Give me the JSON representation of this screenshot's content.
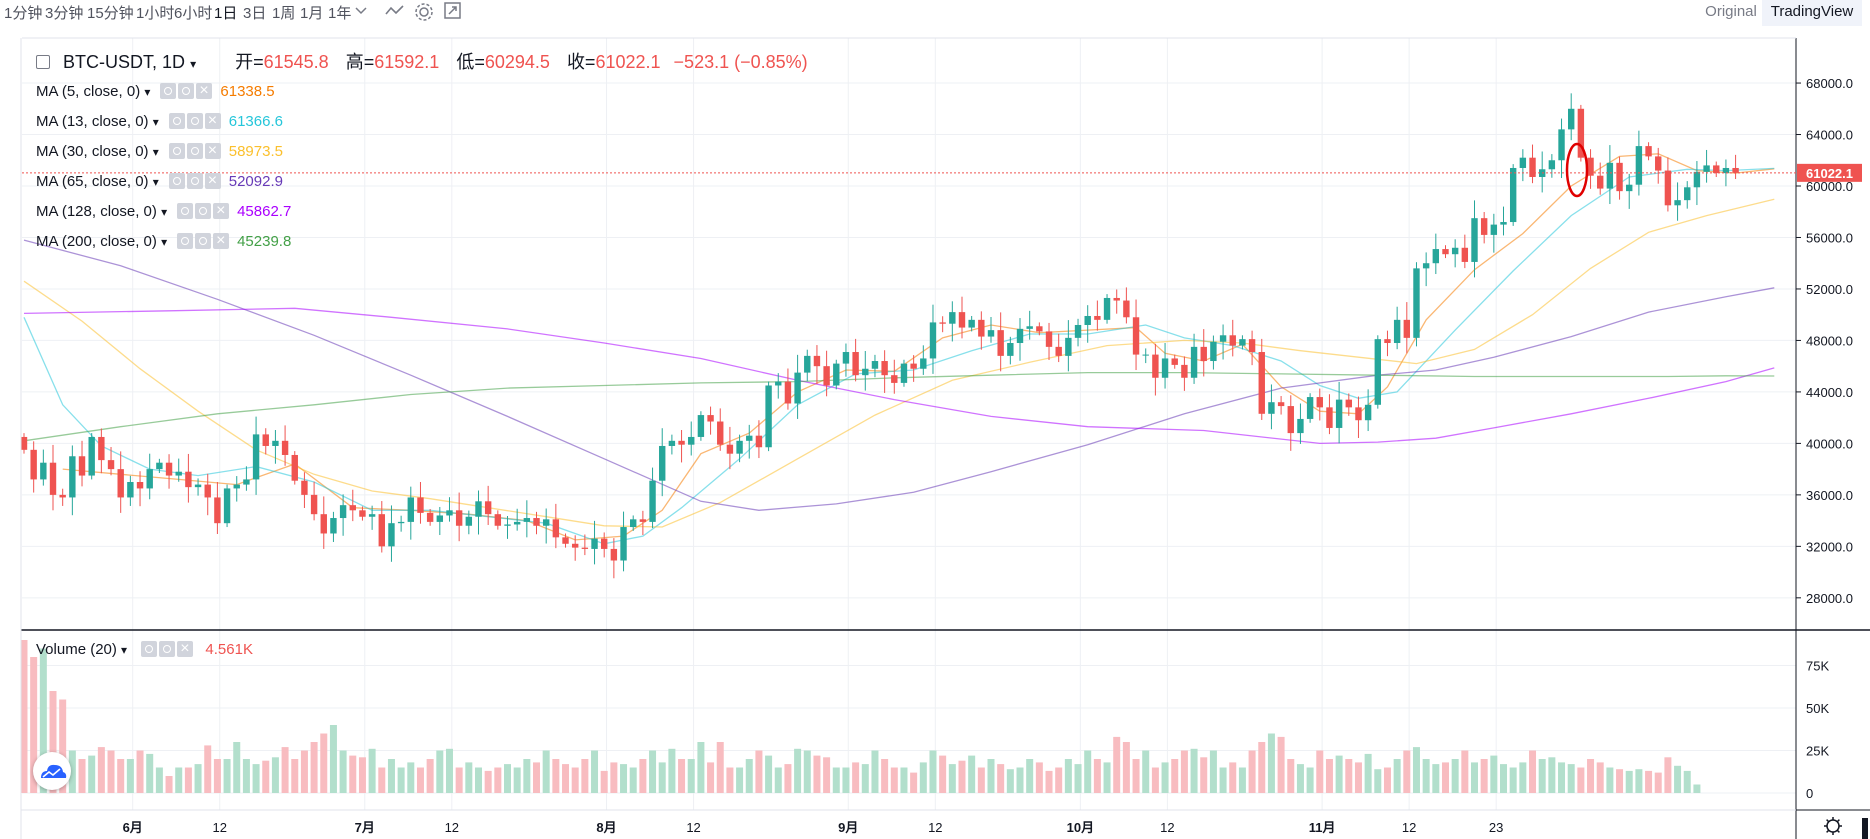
{
  "toolbar": {
    "timeframes": [
      "1分钟",
      "3分钟",
      "15分钟",
      "1小时",
      "6小时",
      "1日",
      "3日",
      "1周",
      "1月",
      "1年"
    ],
    "active_timeframe": "1日",
    "original_label": "Original",
    "tradingview_label": "TradingView"
  },
  "legend": {
    "symbol": "BTC-USDT",
    "interval": "1D",
    "open_label": "开=",
    "open": "61545.8",
    "high_label": "高=",
    "high": "61592.1",
    "low_label": "低=",
    "low": "60294.5",
    "close_label": "收=",
    "close": "61022.1",
    "change": "−523.1 (−0.85%)"
  },
  "indicators": [
    {
      "label": "MA (5, close, 0)",
      "value": "61338.5",
      "color": "#f57c00"
    },
    {
      "label": "MA (13, close, 0)",
      "value": "61366.6",
      "color": "#26c6da"
    },
    {
      "label": "MA (30, close, 0)",
      "value": "58973.5",
      "color": "#fbc02d"
    },
    {
      "label": "MA (65, close, 0)",
      "value": "52092.9",
      "color": "#673ab7"
    },
    {
      "label": "MA (128, close, 0)",
      "value": "45862.7",
      "color": "#aa00ff"
    },
    {
      "label": "MA (200, close, 0)",
      "value": "45239.8",
      "color": "#43a047"
    }
  ],
  "volume_legend": {
    "label": "Volume (20)",
    "value": "4.561K"
  },
  "last_price_label": "61022.1",
  "chart_data": {
    "type": "candlestick",
    "price_axis_ticks": [
      "68000.0",
      "64000.0",
      "60000.0",
      "56000.0",
      "52000.0",
      "48000.0",
      "44000.0",
      "40000.0",
      "36000.0",
      "32000.0",
      "28000.0"
    ],
    "volume_axis_ticks": [
      "75K",
      "50K",
      "25K",
      "0"
    ],
    "time_axis_ticks": [
      "6月",
      "12",
      "7月",
      "12",
      "8月",
      "12",
      "9月",
      "12",
      "10月",
      "12",
      "11月",
      "12",
      "23"
    ],
    "ylim": [
      25500,
      71500
    ],
    "closes": [
      39500,
      37200,
      38500,
      36000,
      35800,
      39000,
      37500,
      40500,
      38700,
      38000,
      35800,
      37000,
      36500,
      38000,
      38500,
      37500,
      37800,
      36600,
      36800,
      35800,
      33800,
      36500,
      36800,
      37200,
      40700,
      39800,
      40200,
      39100,
      37100,
      36000,
      34500,
      33000,
      34200,
      35200,
      34800,
      34300,
      34500,
      32000,
      33800,
      33900,
      35800,
      34600,
      33900,
      34400,
      34800,
      33600,
      34300,
      35500,
      34500,
      33600,
      33700,
      33900,
      34200,
      33600,
      34100,
      32700,
      32200,
      31900,
      31800,
      32600,
      31800,
      30900,
      33500,
      34100,
      33900,
      37100,
      39800,
      40200,
      39900,
      40500,
      42200,
      41700,
      39900,
      39200,
      40200,
      40600,
      39700,
      44500,
      44800,
      43100,
      45500,
      46800,
      46000,
      44500,
      46200,
      47100,
      45300,
      45800,
      46400,
      45300,
      44700,
      46200,
      45800,
      46600,
      49400,
      49300,
      50200,
      49000,
      49600,
      48300,
      48800,
      46800,
      47800,
      48900,
      49100,
      48700,
      47500,
      46800,
      48200,
      49200,
      49900,
      49600,
      51300,
      51100,
      49800,
      46900,
      46900,
      45100,
      46600,
      46100,
      45100,
      47500,
      46400,
      47900,
      48400,
      47600,
      48100,
      47100,
      42300,
      43200,
      42900,
      40800,
      41900,
      43600,
      42800,
      41200,
      43400,
      42800,
      41800,
      43000,
      48100,
      47800,
      49600,
      48200,
      53600,
      54000,
      55100,
      54700,
      55200,
      54100,
      57500,
      56200,
      57000,
      57200,
      61400,
      62200,
      60700,
      61300,
      62000,
      64400,
      66000,
      62200,
      60800,
      59800,
      61800,
      59600,
      60100,
      63100,
      62300,
      61200,
      58500,
      58900,
      59900,
      61100,
      61600,
      61000,
      61400,
      61022
    ],
    "volume": [
      90,
      80,
      85,
      60,
      55,
      25,
      20,
      22,
      27,
      25,
      20,
      20,
      25,
      23,
      15,
      10,
      15,
      15,
      17,
      28,
      20,
      20,
      30,
      20,
      17,
      19,
      21,
      27,
      20,
      25,
      30,
      35,
      40,
      25,
      22,
      21,
      26,
      15,
      20,
      15,
      18,
      15,
      20,
      25,
      26,
      15,
      18,
      15,
      13,
      15,
      17,
      15,
      20,
      18,
      25,
      20,
      17,
      15,
      20,
      25,
      13,
      18,
      17,
      15,
      20,
      25,
      18,
      26,
      20,
      20,
      30,
      18,
      30,
      15,
      15,
      20,
      25,
      22,
      15,
      17,
      26,
      25,
      22,
      21,
      15,
      15,
      18,
      17,
      25,
      20,
      15,
      15,
      12,
      18,
      25,
      22,
      17,
      19,
      22,
      15,
      20,
      17,
      14,
      15,
      20,
      18,
      13,
      15,
      20,
      17,
      25,
      20,
      18,
      33,
      30,
      20,
      25,
      15,
      18,
      20,
      25,
      26,
      21,
      25,
      15,
      18,
      15,
      25,
      30,
      35,
      33,
      20,
      17,
      15,
      25,
      20,
      22,
      20,
      18,
      23,
      14,
      15,
      20,
      25,
      27,
      20,
      17,
      18,
      20,
      25,
      18,
      20,
      22,
      17,
      15,
      18,
      25,
      20,
      21,
      18,
      17,
      15,
      20,
      18,
      15,
      14,
      13,
      14,
      13,
      12,
      21,
      16,
      13,
      5
    ],
    "ma_series": {
      "MA5": {
        "color": "#f57c00",
        "points": [
          [
            4,
            38000
          ],
          [
            10,
            37600
          ],
          [
            16,
            37200
          ],
          [
            22,
            36800
          ],
          [
            28,
            38400
          ],
          [
            34,
            35000
          ],
          [
            40,
            34800
          ],
          [
            46,
            34500
          ],
          [
            52,
            34000
          ],
          [
            57,
            32500
          ],
          [
            62,
            32800
          ],
          [
            66,
            34800
          ],
          [
            70,
            39200
          ],
          [
            75,
            40800
          ],
          [
            80,
            44000
          ],
          [
            85,
            45700
          ],
          [
            90,
            45600
          ],
          [
            95,
            48200
          ],
          [
            100,
            49200
          ],
          [
            105,
            48600
          ],
          [
            110,
            48800
          ],
          [
            115,
            49000
          ],
          [
            118,
            47000
          ],
          [
            122,
            46400
          ],
          [
            126,
            47700
          ],
          [
            130,
            44400
          ],
          [
            134,
            42500
          ],
          [
            138,
            42300
          ],
          [
            141,
            44400
          ],
          [
            145,
            49600
          ],
          [
            150,
            53500
          ],
          [
            155,
            56300
          ],
          [
            160,
            60000
          ],
          [
            165,
            62300
          ],
          [
            169,
            62500
          ],
          [
            173,
            61200
          ],
          [
            177,
            61000
          ],
          [
            181,
            61338
          ]
        ]
      },
      "MA13": {
        "color": "#26c6da",
        "points": [
          [
            0,
            49800
          ],
          [
            4,
            43000
          ],
          [
            8,
            39800
          ],
          [
            13,
            38000
          ],
          [
            18,
            37500
          ],
          [
            24,
            38200
          ],
          [
            30,
            37000
          ],
          [
            36,
            34800
          ],
          [
            42,
            34800
          ],
          [
            48,
            34300
          ],
          [
            54,
            33800
          ],
          [
            60,
            32200
          ],
          [
            64,
            32800
          ],
          [
            68,
            35000
          ],
          [
            74,
            38800
          ],
          [
            80,
            43000
          ],
          [
            86,
            45400
          ],
          [
            92,
            45700
          ],
          [
            98,
            47200
          ],
          [
            104,
            48500
          ],
          [
            110,
            48500
          ],
          [
            116,
            49200
          ],
          [
            120,
            48200
          ],
          [
            125,
            47600
          ],
          [
            130,
            46400
          ],
          [
            134,
            44500
          ],
          [
            138,
            43500
          ],
          [
            142,
            44000
          ],
          [
            148,
            48800
          ],
          [
            154,
            53400
          ],
          [
            160,
            57700
          ],
          [
            166,
            60700
          ],
          [
            172,
            61300
          ],
          [
            176,
            61200
          ],
          [
            181,
            61366
          ]
        ]
      },
      "MA30": {
        "color": "#fbc02d",
        "points": [
          [
            0,
            52600
          ],
          [
            6,
            49500
          ],
          [
            12,
            45800
          ],
          [
            18,
            42500
          ],
          [
            24,
            39500
          ],
          [
            30,
            37600
          ],
          [
            36,
            36300
          ],
          [
            42,
            35700
          ],
          [
            48,
            35000
          ],
          [
            54,
            34300
          ],
          [
            60,
            33600
          ],
          [
            66,
            33500
          ],
          [
            72,
            35400
          ],
          [
            80,
            38800
          ],
          [
            88,
            42200
          ],
          [
            96,
            44900
          ],
          [
            104,
            46300
          ],
          [
            112,
            47600
          ],
          [
            120,
            48000
          ],
          [
            126,
            47800
          ],
          [
            132,
            47200
          ],
          [
            138,
            46700
          ],
          [
            144,
            46200
          ],
          [
            150,
            47300
          ],
          [
            156,
            50000
          ],
          [
            162,
            53600
          ],
          [
            168,
            56400
          ],
          [
            174,
            57700
          ],
          [
            181,
            58973
          ]
        ]
      },
      "MA65": {
        "color": "#673ab7",
        "points": [
          [
            0,
            55800
          ],
          [
            10,
            53800
          ],
          [
            20,
            51200
          ],
          [
            30,
            48400
          ],
          [
            40,
            45300
          ],
          [
            50,
            42100
          ],
          [
            60,
            38800
          ],
          [
            70,
            35500
          ],
          [
            76,
            34800
          ],
          [
            84,
            35300
          ],
          [
            92,
            36200
          ],
          [
            100,
            37800
          ],
          [
            110,
            39900
          ],
          [
            120,
            42300
          ],
          [
            130,
            44300
          ],
          [
            140,
            45300
          ],
          [
            146,
            45700
          ],
          [
            152,
            46700
          ],
          [
            160,
            48300
          ],
          [
            168,
            50200
          ],
          [
            176,
            51400
          ],
          [
            181,
            52092
          ]
        ]
      },
      "MA128": {
        "color": "#aa00ff",
        "points": [
          [
            0,
            50100
          ],
          [
            15,
            50300
          ],
          [
            28,
            50500
          ],
          [
            38,
            49800
          ],
          [
            50,
            48900
          ],
          [
            60,
            47800
          ],
          [
            70,
            46600
          ],
          [
            80,
            44900
          ],
          [
            90,
            43400
          ],
          [
            100,
            42100
          ],
          [
            110,
            41300
          ],
          [
            122,
            41000
          ],
          [
            134,
            40000
          ],
          [
            140,
            40100
          ],
          [
            146,
            40400
          ],
          [
            152,
            41200
          ],
          [
            160,
            42300
          ],
          [
            168,
            43500
          ],
          [
            176,
            44800
          ],
          [
            181,
            45862
          ]
        ]
      },
      "MA200": {
        "color": "#43a047",
        "points": [
          [
            0,
            40200
          ],
          [
            10,
            41300
          ],
          [
            20,
            42300
          ],
          [
            30,
            43000
          ],
          [
            40,
            43800
          ],
          [
            50,
            44300
          ],
          [
            60,
            44500
          ],
          [
            70,
            44700
          ],
          [
            80,
            44800
          ],
          [
            90,
            45100
          ],
          [
            100,
            45300
          ],
          [
            110,
            45500
          ],
          [
            120,
            45500
          ],
          [
            130,
            45400
          ],
          [
            140,
            45300
          ],
          [
            150,
            45200
          ],
          [
            160,
            45200
          ],
          [
            170,
            45200
          ],
          [
            176,
            45250
          ],
          [
            181,
            45239
          ]
        ]
      }
    }
  }
}
